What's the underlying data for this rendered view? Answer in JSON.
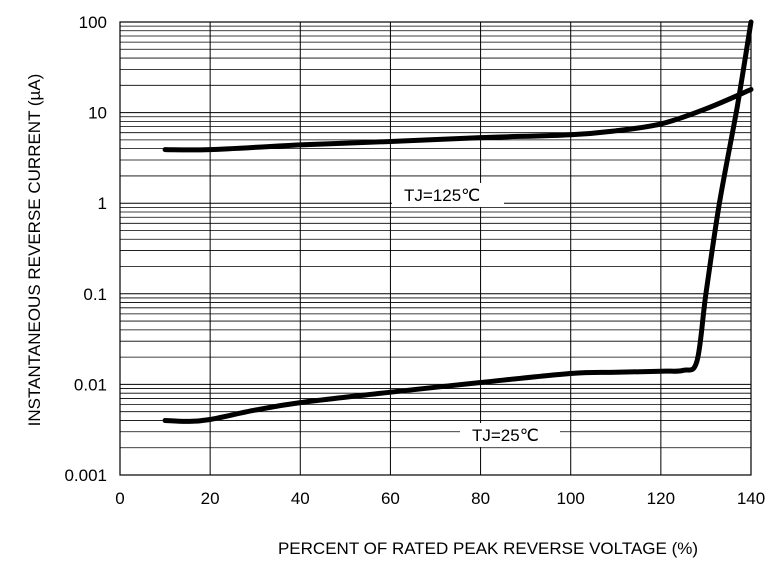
{
  "chart_data": {
    "type": "line",
    "xlabel": "PERCENT OF RATED PEAK REVERSE VOLTAGE (%)",
    "ylabel": "INSTANTANEOUS REVERSE CURRENT (µA)",
    "xlim": [
      0,
      140
    ],
    "ylim": [
      0.001,
      100
    ],
    "yscale": "log",
    "grid": true,
    "x_ticks": [
      "0",
      "20",
      "40",
      "60",
      "80",
      "100",
      "120",
      "140"
    ],
    "y_ticks": [
      "0.001",
      "0.01",
      "0.1",
      "1",
      "10",
      "100"
    ],
    "series": [
      {
        "name": "TJ=125℃",
        "x": [
          10,
          20,
          40,
          60,
          80,
          100,
          110,
          120,
          130,
          140
        ],
        "y": [
          3.9,
          3.9,
          4.4,
          4.8,
          5.3,
          5.7,
          6.3,
          7.5,
          11,
          18
        ]
      },
      {
        "name": "TJ=25℃",
        "x": [
          10,
          15,
          20,
          30,
          40,
          60,
          80,
          100,
          110,
          120,
          125,
          128,
          130,
          133,
          137,
          140
        ],
        "y": [
          0.004,
          0.0039,
          0.0041,
          0.0052,
          0.0063,
          0.0082,
          0.0105,
          0.0132,
          0.0136,
          0.014,
          0.0143,
          0.018,
          0.1,
          1,
          12,
          100
        ]
      }
    ]
  }
}
